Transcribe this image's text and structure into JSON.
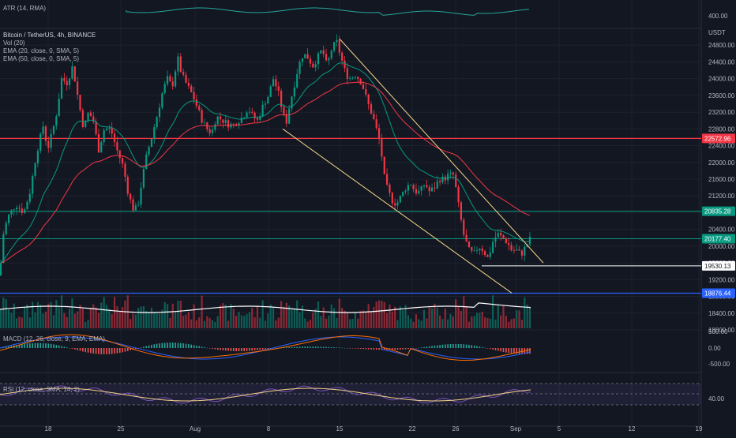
{
  "chart_data": {
    "type": "candlestick",
    "title": "Bitcoin / TetherUS, 4h, BINANCE",
    "symbol": "Bitcoin / TetherUS",
    "interval": "4h",
    "exchange": "BINANCE",
    "currency": "USDT",
    "ylim": [
      18000,
      25200
    ],
    "y_ticks": [
      18000,
      18400,
      18800,
      19200,
      19600,
      20000,
      20400,
      20800,
      21200,
      21600,
      22000,
      22400,
      22800,
      23200,
      23600,
      24000,
      24400,
      24800
    ],
    "y_tick_labels": [
      "18000.00",
      "18400.00",
      "18800.00",
      "19200.00",
      "19600.00",
      "20000.00",
      "20400.00",
      "20800.00",
      "21200.00",
      "21600.00",
      "22000.00",
      "22400.00",
      "22800.00",
      "23200.00",
      "23600.00",
      "24000.00",
      "24400.00",
      "24800.00"
    ],
    "x_tick_labels": [
      "18",
      "25",
      "Aug",
      "8",
      "15",
      "22",
      "26",
      "Sep",
      "5",
      "12",
      "19"
    ],
    "indicators": [
      "Vol (20)",
      "EMA (20, close, 0, SMA, 5)",
      "EMA (50, close, 0, SMA, 5)"
    ],
    "price_path": [
      [
        0,
        19300
      ],
      [
        3,
        20200
      ],
      [
        10,
        20700
      ],
      [
        20,
        21000
      ],
      [
        30,
        20800
      ],
      [
        38,
        21300
      ],
      [
        46,
        22200
      ],
      [
        55,
        22900
      ],
      [
        60,
        22300
      ],
      [
        66,
        22700
      ],
      [
        72,
        23200
      ],
      [
        78,
        24000
      ],
      [
        85,
        23900
      ],
      [
        92,
        24300
      ],
      [
        100,
        23400
      ],
      [
        106,
        22800
      ],
      [
        112,
        23200
      ],
      [
        118,
        23000
      ],
      [
        125,
        22300
      ],
      [
        132,
        22800
      ],
      [
        140,
        22800
      ],
      [
        148,
        22300
      ],
      [
        156,
        21900
      ],
      [
        162,
        21300
      ],
      [
        168,
        20900
      ],
      [
        174,
        20900
      ],
      [
        180,
        21600
      ],
      [
        186,
        22200
      ],
      [
        192,
        22600
      ],
      [
        200,
        23200
      ],
      [
        206,
        23700
      ],
      [
        212,
        24000
      ],
      [
        218,
        23800
      ],
      [
        225,
        24500
      ],
      [
        230,
        24100
      ],
      [
        238,
        23800
      ],
      [
        244,
        23600
      ],
      [
        250,
        23300
      ],
      [
        256,
        23000
      ],
      [
        262,
        22800
      ],
      [
        268,
        22700
      ],
      [
        274,
        23100
      ],
      [
        282,
        23000
      ],
      [
        290,
        22900
      ],
      [
        296,
        22900
      ],
      [
        302,
        23000
      ],
      [
        308,
        23100
      ],
      [
        314,
        23300
      ],
      [
        320,
        23100
      ],
      [
        326,
        23000
      ],
      [
        334,
        23400
      ],
      [
        340,
        23600
      ],
      [
        346,
        24000
      ],
      [
        352,
        23700
      ],
      [
        358,
        23200
      ],
      [
        362,
        22900
      ],
      [
        366,
        23300
      ],
      [
        372,
        23800
      ],
      [
        378,
        24300
      ],
      [
        384,
        24600
      ],
      [
        390,
        24500
      ],
      [
        396,
        24300
      ],
      [
        402,
        24500
      ],
      [
        408,
        24700
      ],
      [
        414,
        24300
      ],
      [
        420,
        24700
      ],
      [
        426,
        24900
      ],
      [
        432,
        24500
      ],
      [
        438,
        24100
      ],
      [
        444,
        24000
      ],
      [
        450,
        24100
      ],
      [
        458,
        23900
      ],
      [
        466,
        23400
      ],
      [
        472,
        23100
      ],
      [
        478,
        22700
      ],
      [
        482,
        22400
      ],
      [
        486,
        21700
      ],
      [
        490,
        21400
      ],
      [
        496,
        21100
      ],
      [
        502,
        21000
      ],
      [
        508,
        21200
      ],
      [
        514,
        21400
      ],
      [
        520,
        21500
      ],
      [
        526,
        21300
      ],
      [
        532,
        21300
      ],
      [
        538,
        21500
      ],
      [
        544,
        21300
      ],
      [
        550,
        21400
      ],
      [
        556,
        21600
      ],
      [
        562,
        21600
      ],
      [
        568,
        21700
      ],
      [
        574,
        21700
      ],
      [
        578,
        21300
      ],
      [
        582,
        20800
      ],
      [
        588,
        20200
      ],
      [
        594,
        19900
      ],
      [
        600,
        19800
      ],
      [
        606,
        20000
      ],
      [
        612,
        19900
      ],
      [
        618,
        19700
      ],
      [
        624,
        20100
      ],
      [
        630,
        20300
      ],
      [
        636,
        20200
      ],
      [
        642,
        20100
      ],
      [
        648,
        19900
      ],
      [
        654,
        19900
      ],
      [
        660,
        19800
      ],
      [
        666,
        20000
      ],
      [
        672,
        20200
      ]
    ],
    "horizontal_lines": [
      {
        "value": 22572.96,
        "label": "22572.96",
        "color": "#f23645"
      },
      {
        "value": 20835.28,
        "label": "20835.28",
        "color": "#089981"
      },
      {
        "value": 20177.4,
        "label": "20177.40",
        "color": "#089981"
      },
      {
        "value": 19530.13,
        "label": "19530.13",
        "color": "#ffffff"
      },
      {
        "value": 18876.44,
        "label": "18876.44",
        "color": "#2962ff"
      }
    ],
    "trendlines": [
      {
        "from": [
          430,
          24950
        ],
        "to": [
          688,
          19600
        ]
      },
      {
        "from": [
          358,
          22800
        ],
        "to": [
          648,
          18880
        ]
      }
    ],
    "colors": {
      "up": "#089981",
      "down": "#f23645",
      "ema20": "#089981",
      "ema50": "#f23645",
      "volume_ma": "#ffffff"
    }
  },
  "atr": {
    "label": "ATR (14, RMA)",
    "tick_label": "400.00"
  },
  "macd": {
    "label": "MACD (12, 26, close, 9, EMA, EMA)",
    "tick_labels": [
      "500.00",
      "0.00",
      "-500.00"
    ]
  },
  "rsi": {
    "label": "RSI (12, close, SMA, 14, 2)",
    "tick_label": "40.00"
  }
}
